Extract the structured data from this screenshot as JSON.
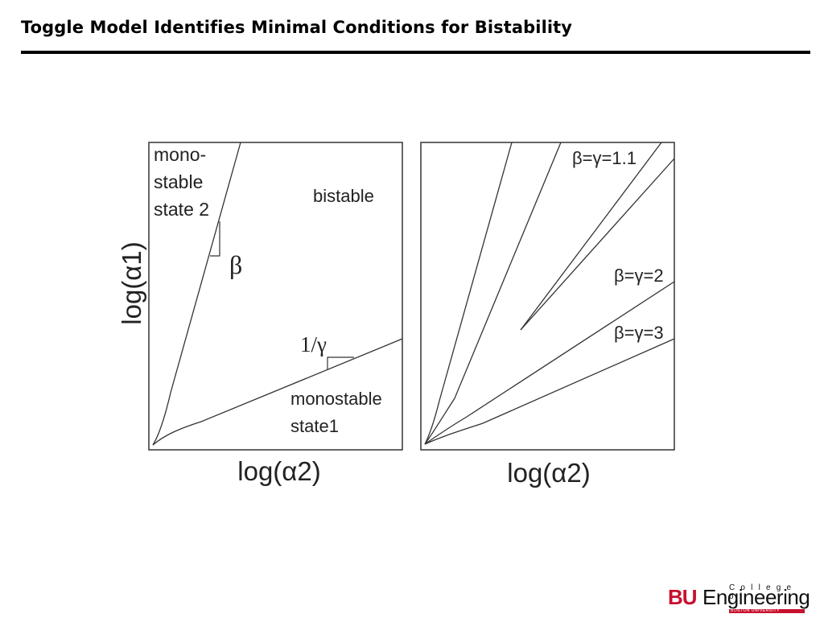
{
  "slide": {
    "title": "Toggle Model Identifies Minimal Conditions for Bistability"
  },
  "left_panel": {
    "y_axis_label": "log(α1)",
    "x_axis_label": "log(α2)",
    "region_top_left": [
      "mono-",
      "stable",
      "state 2"
    ],
    "region_center": "bistable",
    "region_bottom_right": [
      "monostable",
      "state1"
    ],
    "slope_upper_label": "β",
    "slope_lower_label": "1/γ"
  },
  "right_panel": {
    "x_axis_label": "log(α2)",
    "curve_labels": [
      "β=γ=1.1",
      "β=γ=2",
      "β=γ=3"
    ]
  },
  "logo": {
    "bu": "BU",
    "engineering": "Engineering",
    "college_of": "College of",
    "boston_university": "BOSTON UNIVERSITY",
    "bu_color": "#c8102e"
  },
  "colors": {
    "title_rule": "#000000",
    "line": "#333333"
  }
}
